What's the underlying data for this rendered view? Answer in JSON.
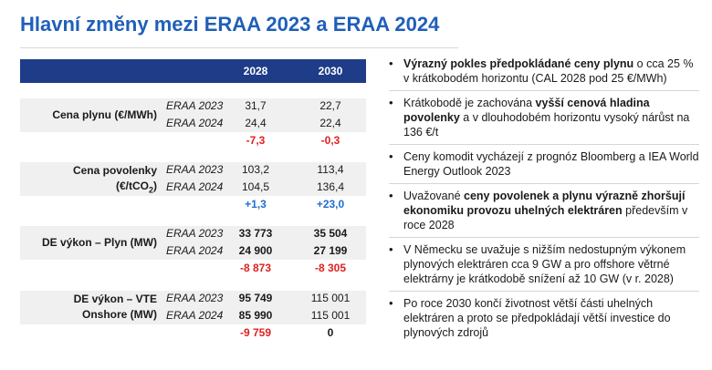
{
  "title": "Hlavní změny mezi ERAA 2023 a ERAA 2024",
  "table": {
    "years": [
      "2028",
      "2030"
    ],
    "sections": [
      {
        "label": [
          "Cena plynu (€/MWh)"
        ],
        "rows": [
          {
            "source": "ERAA 2023",
            "v2028": "31,7",
            "v2030": "22,7"
          },
          {
            "source": "ERAA 2024",
            "v2028": "24,4",
            "v2030": "22,4"
          }
        ],
        "diff": {
          "v2028": "-7,3",
          "v2030": "-0,3"
        }
      },
      {
        "label": [
          "Cena povolenky",
          "(€/tCO",
          "2",
          ")"
        ],
        "rows": [
          {
            "source": "ERAA 2023",
            "v2028": "103,2",
            "v2030": "113,4"
          },
          {
            "source": "ERAA 2024",
            "v2028": "104,5",
            "v2030": "136,4"
          }
        ],
        "diff": {
          "v2028": "+1,3",
          "v2030": "+23,0"
        }
      },
      {
        "label": [
          "DE výkon – Plyn (MW)"
        ],
        "rows": [
          {
            "source": "ERAA 2023",
            "v2028": "33 773",
            "v2030": "35 504"
          },
          {
            "source": "ERAA 2024",
            "v2028": "24 900",
            "v2030": "27 199"
          }
        ],
        "diff": {
          "v2028": "-8 873",
          "v2030": "-8 305"
        }
      },
      {
        "label": [
          "DE výkon – VTE",
          "Onshore (MW)"
        ],
        "rows": [
          {
            "source": "ERAA 2023",
            "v2028": "95 749",
            "v2030": "115 001"
          },
          {
            "source": "ERAA 2024",
            "v2028": "85 990",
            "v2030": "115 001"
          }
        ],
        "diff": {
          "v2028": "-9 759",
          "v2030": "0"
        }
      }
    ]
  },
  "bullets": [
    {
      "parts": [
        {
          "t": "Výrazný pokles předpokládané ceny plynu",
          "b": true
        },
        {
          "t": " o cca 25 % v krátkobodém horizontu (CAL 2028 pod 25 €/MWh)",
          "b": false
        }
      ]
    },
    {
      "parts": [
        {
          "t": "Krátkobodě je zachována ",
          "b": false
        },
        {
          "t": "vyšší cenová hladina povolenky",
          "b": true
        },
        {
          "t": " a v dlouhodobém horizontu vysoký nárůst na 136 €/t",
          "b": false
        }
      ]
    },
    {
      "parts": [
        {
          "t": "Ceny komodit vycházejí z prognóz Bloomberg a IEA World Energy Outlook 2023",
          "b": false
        }
      ]
    },
    {
      "parts": [
        {
          "t": "Uvažované ",
          "b": false
        },
        {
          "t": "ceny povolenek a plynu výrazně zhoršují ekonomiku provozu uhelných elektráren",
          "b": true
        },
        {
          "t": " především v roce 2028",
          "b": false
        }
      ]
    },
    {
      "parts": [
        {
          "t": "V Německu se uvažuje s nižším nedostupným výkonem plynových elektráren cca 9 GW a pro offshore větrné elektrárny je krátkodobě snížení až 10 GW (v r. 2028)",
          "b": false
        }
      ]
    },
    {
      "parts": [
        {
          "t": "Po roce 2030 končí životnost větší části uhelných elektráren a proto se předpokládají větší investice do plynových zdrojů",
          "b": false
        }
      ]
    }
  ]
}
